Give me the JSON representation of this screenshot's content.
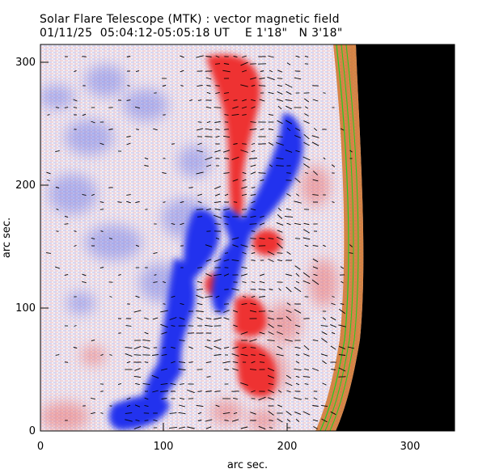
{
  "header": {
    "title": "Solar Flare Telescope (MTK) : vector magnetic field",
    "date": "01/11/25",
    "time_range": "05:04:12-05:05:18 UT",
    "position_e": "E 1'18\"",
    "position_n": "N 3'18\""
  },
  "axes": {
    "xlabel": "arc sec.",
    "ylabel": "arc sec.",
    "x_ticks": [
      "0",
      "100",
      "200",
      "300"
    ],
    "y_ticks": [
      "0",
      "100",
      "200",
      "300"
    ],
    "xlim": [
      0,
      337
    ],
    "ylim": [
      0,
      312
    ]
  },
  "colors": {
    "positive_polarity": "#ee3333",
    "negative_polarity": "#2233ee",
    "off_disk": "#000000",
    "limb_contour": "#22cc22",
    "limb_band": "#cc6611",
    "vectors": "#000000"
  }
}
